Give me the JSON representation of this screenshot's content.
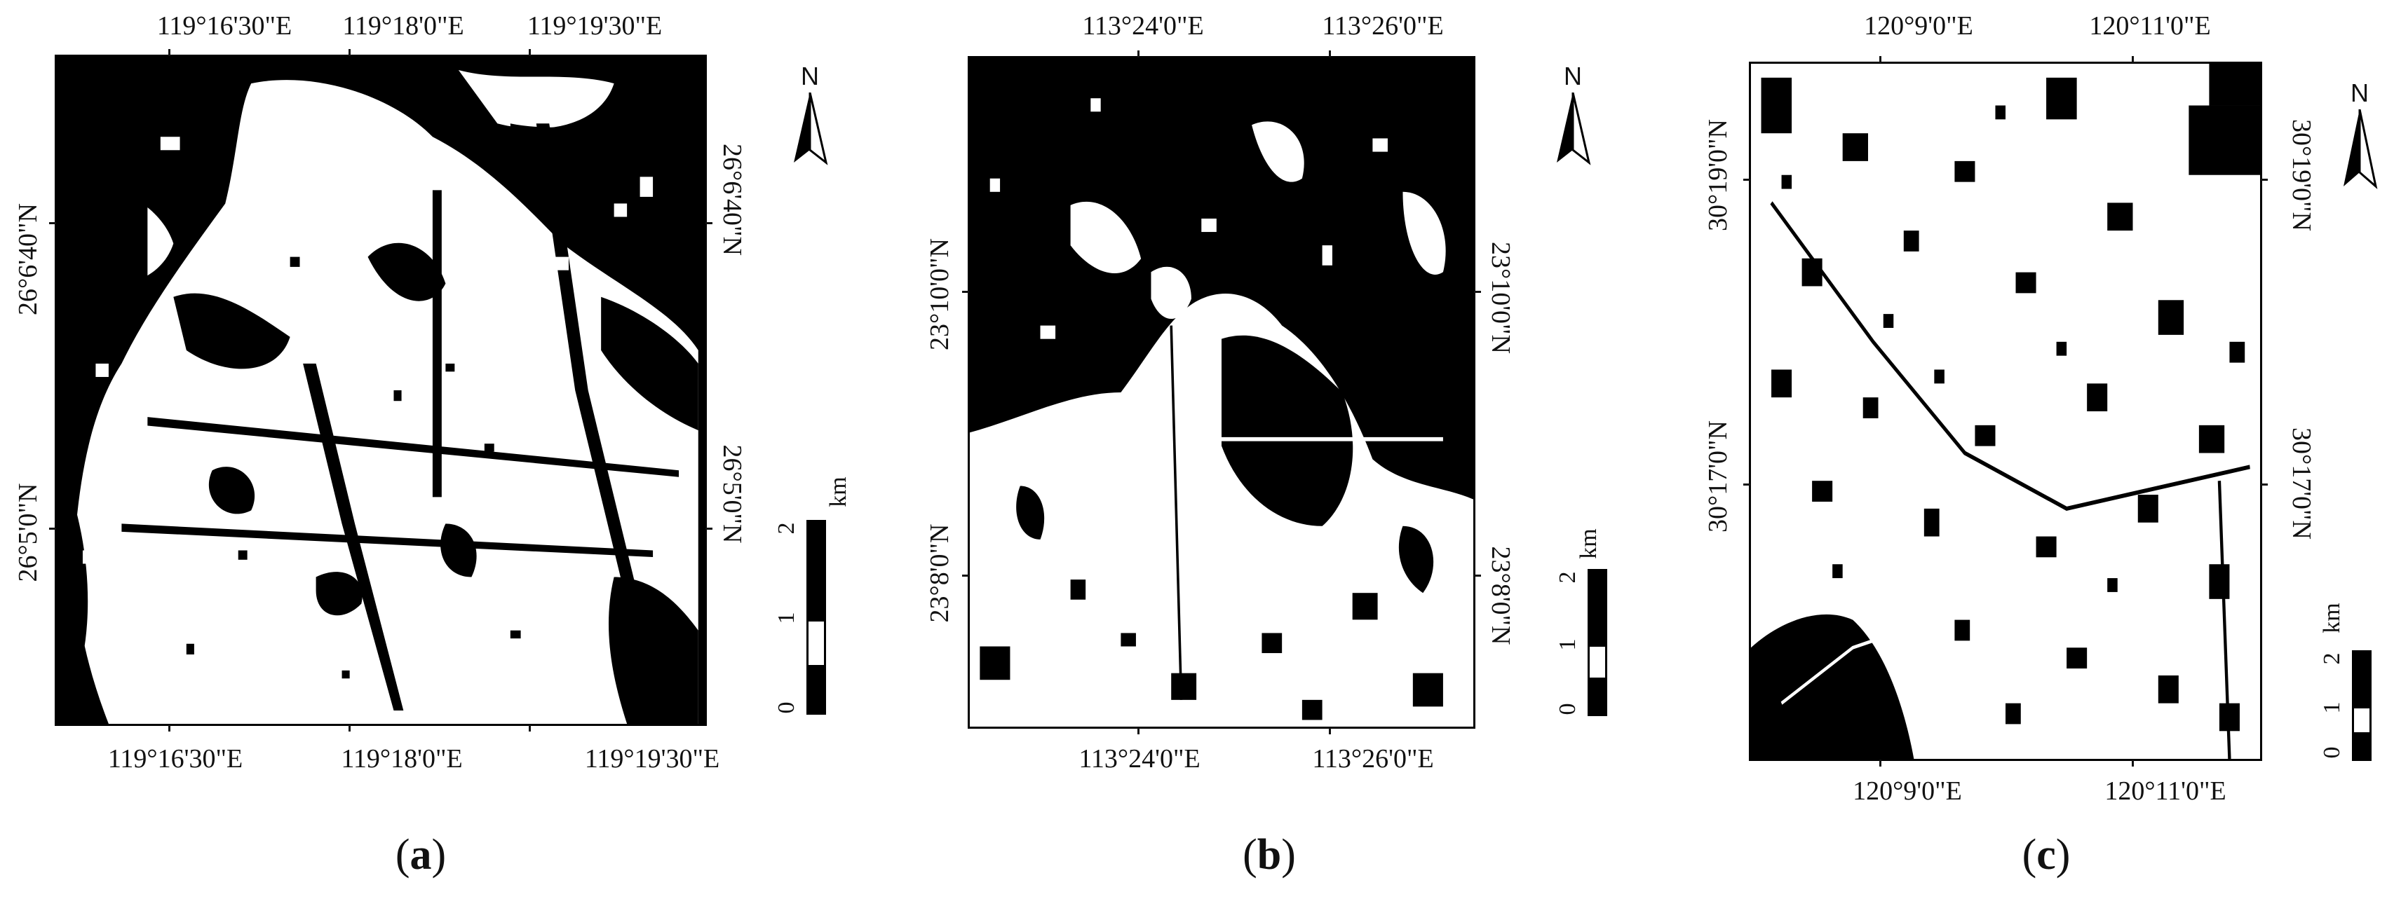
{
  "panels": [
    {
      "caption": "a",
      "top_labels": [
        "119°16'30\"E",
        "119°18'0\"E",
        "119°19'30\"E"
      ],
      "bottom_labels": [
        "119°16'30\"E",
        "119°18'0\"E",
        "119°19'30\"E"
      ],
      "left_labels": [
        "26°6'40\"N",
        "26°5'0\"N"
      ],
      "right_labels": [
        "26°6'40\"N",
        "26°5'0\"N"
      ],
      "north_label": "N",
      "scale": {
        "unit": "km",
        "ticks": [
          "0",
          "1",
          "2"
        ]
      }
    },
    {
      "caption": "b",
      "top_labels": [
        "113°24'0\"E",
        "113°26'0\"E"
      ],
      "bottom_labels": [
        "113°24'0\"E",
        "113°26'0\"E"
      ],
      "left_labels": [
        "23°10'0\"N",
        "23°8'0\"N"
      ],
      "right_labels": [
        "23°10'0\"N",
        "23°8'0\"N"
      ],
      "north_label": "N",
      "scale": {
        "unit": "km",
        "ticks": [
          "0",
          "1",
          "2"
        ]
      }
    },
    {
      "caption": "c",
      "top_labels": [
        "120°9'0\"E",
        "120°11'0\"E"
      ],
      "bottom_labels": [
        "120°9'0\"E",
        "120°11'0\"E"
      ],
      "left_labels": [
        "30°19'0\"N",
        "30°17'0\"N"
      ],
      "right_labels": [
        "30°19'0\"N",
        "30°17'0\"N"
      ],
      "north_label": "N",
      "scale": {
        "unit": "km",
        "ticks": [
          "0",
          "1",
          "2"
        ]
      }
    }
  ],
  "colors": {
    "built_up": "#ffffff",
    "non_built_up": "#000000"
  }
}
